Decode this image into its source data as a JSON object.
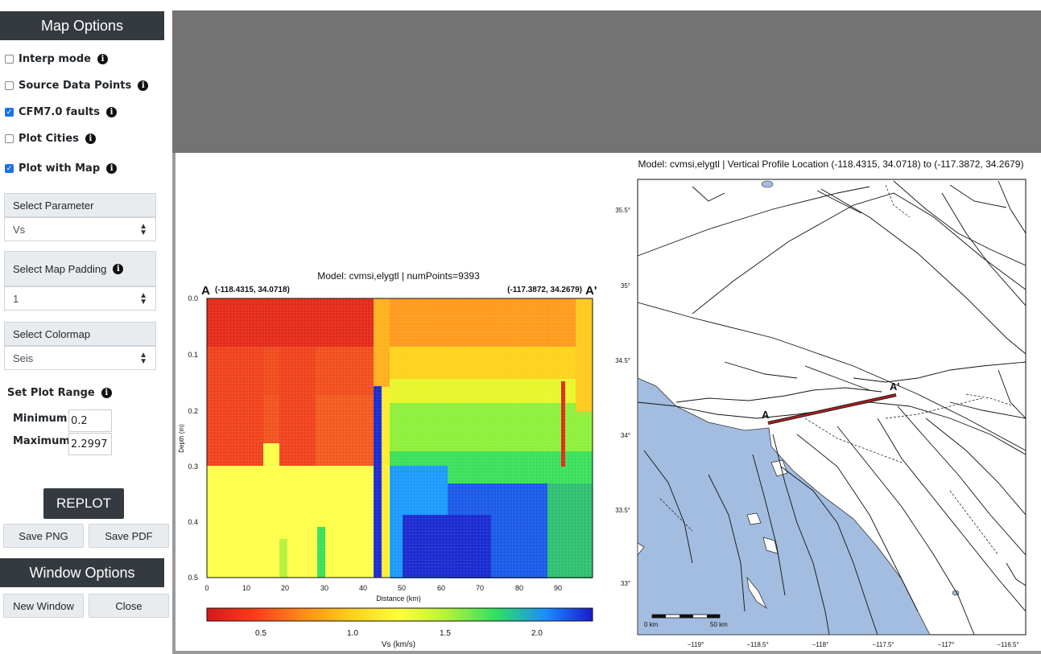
{
  "sidebar": {
    "map_options_title": "Map Options",
    "checkboxes": [
      {
        "label": "Interp mode",
        "checked": false
      },
      {
        "label": "Source Data Points",
        "checked": false
      },
      {
        "label": "CFM7.0 faults",
        "checked": true
      },
      {
        "label": "Plot Cities",
        "checked": false
      },
      {
        "label": "Plot with Map",
        "checked": true
      }
    ],
    "select_parameter_label": "Select Parameter",
    "select_parameter_value": "Vs",
    "select_map_padding_label": "Select Map Padding",
    "select_map_padding_value": "1",
    "select_colormap_label": "Select Colormap",
    "select_colormap_value": "Seis",
    "set_plot_range_label": "Set Plot Range",
    "minimum_label": "Minimum",
    "minimum_value": "0.2",
    "maximum_label": "Maximum",
    "maximum_value": "2.2997",
    "replot_label": "REPLOT",
    "save_png_label": "Save PNG",
    "save_pdf_label": "Save PDF",
    "window_options_title": "Window Options",
    "new_window_label": "New Window",
    "close_label": "Close"
  },
  "profile_plot": {
    "title": "Model: cvmsi,elygtl | numPoints=9393",
    "start_marker": "A",
    "end_marker": "A'",
    "start_coord": "(-118.4315, 34.0718)",
    "end_coord": "(-117.3872, 34.2679)",
    "ylabel": "Depth (m)",
    "xlabel": "Distance (km)",
    "y_ticks": [
      "0.0",
      "0.1",
      "0.2",
      "0.3",
      "0.4",
      "0.5"
    ],
    "x_ticks": [
      "0",
      "10",
      "20",
      "30",
      "40",
      "50",
      "60",
      "70",
      "80",
      "90"
    ],
    "colorbar_label": "Vs (km/s)",
    "colorbar_ticks": [
      "0.5",
      "1.0",
      "1.5",
      "2.0"
    ]
  },
  "map_plot": {
    "title": "Model: cvmsi,elygtl | Vertical Profile Location (-118.4315, 34.0718) to (-117.3872, 34.2679)",
    "lat_ticks": [
      "35.5°",
      "35°",
      "34.5°",
      "34°",
      "33.5°",
      "33°"
    ],
    "lon_ticks": [
      "−119°",
      "−118.5°",
      "−118°",
      "−117.5°",
      "−117°",
      "−116.5°"
    ],
    "point_a": "A",
    "point_a_prime": "A'",
    "scale_start": "0 km",
    "scale_end": "50 km"
  },
  "colors": {
    "dark_panel": "#343a40",
    "ocean": "#a3bde0",
    "profile_line": "#a32020"
  }
}
